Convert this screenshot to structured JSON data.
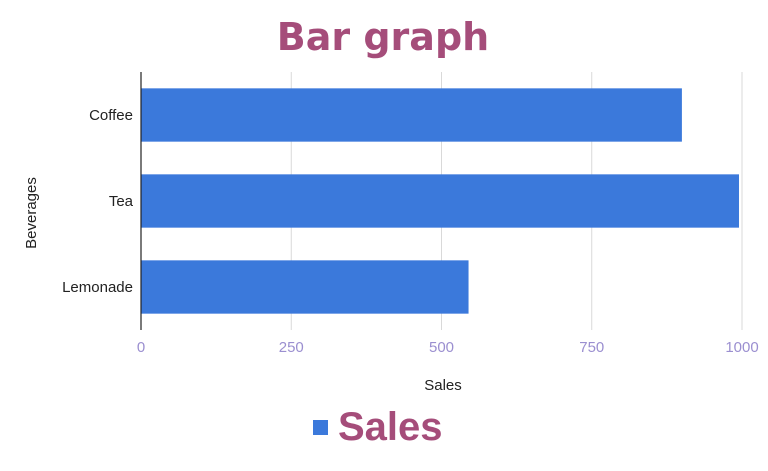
{
  "chart_data": {
    "type": "bar",
    "orientation": "horizontal",
    "title": "Bar graph",
    "categories": [
      "Coffee",
      "Tea",
      "Lemonade"
    ],
    "series": [
      {
        "name": "Sales",
        "values": [
          900,
          995,
          545
        ]
      }
    ],
    "xlabel": "Sales",
    "ylabel": "Beverages",
    "xlim": [
      0,
      1000
    ],
    "xticks": [
      "0",
      "250",
      "500",
      "750",
      "1000"
    ],
    "grid": "vertical",
    "legend_position": "bottom"
  },
  "colors": {
    "bar": "#3b79db",
    "title": "#a54d7a",
    "tick_label": "#9b8fd0",
    "grid": "#d9d9d9",
    "axis": "#222222"
  }
}
